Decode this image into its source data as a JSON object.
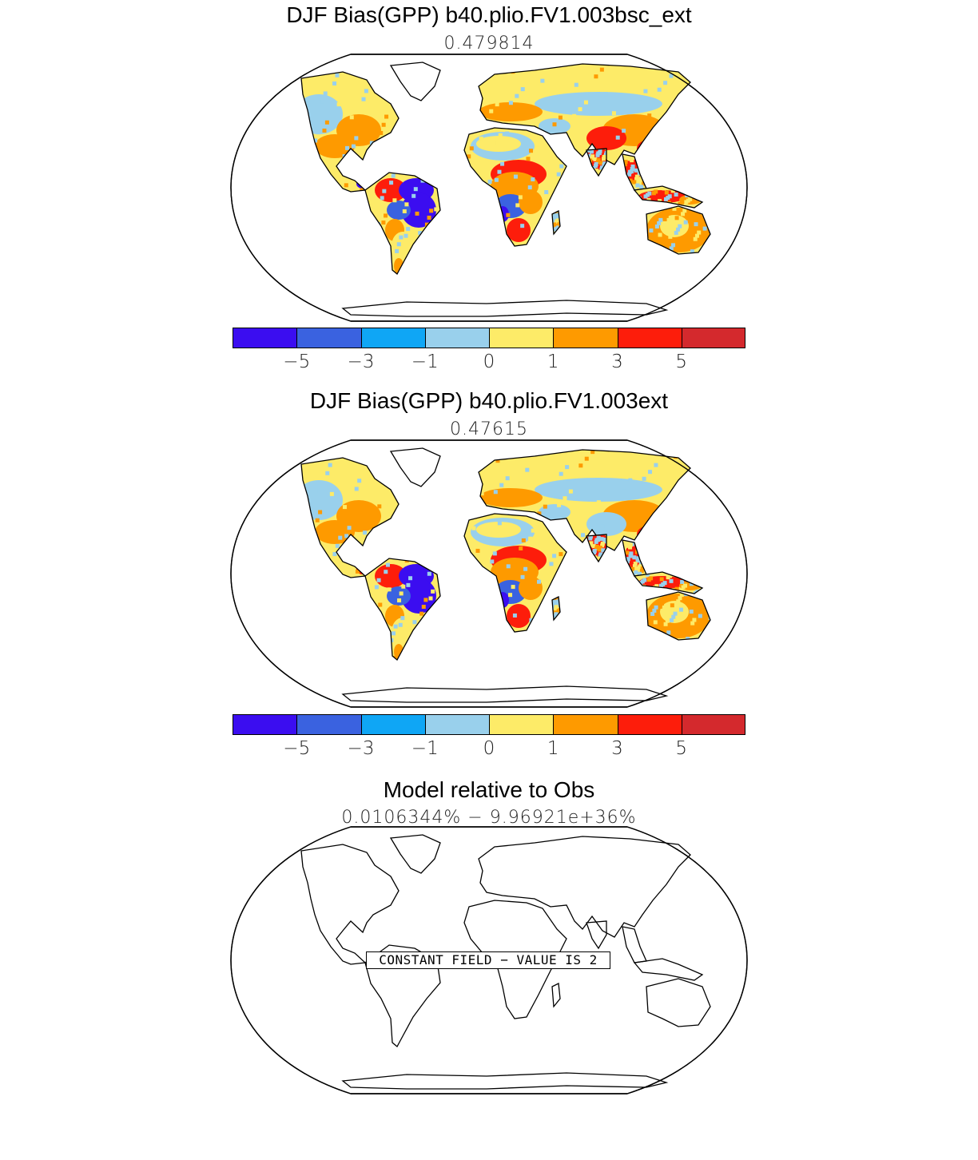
{
  "panels": [
    {
      "title": "DJF Bias(GPP) b40.plio.FV1.003bsc_ext",
      "subtitle": "0.479814",
      "colorbar": {
        "colors": [
          "#3b0df0",
          "#3a62e0",
          "#0fa6f5",
          "#99d0ec",
          "#fdeb68",
          "#fe9a00",
          "#fd1d0b",
          "#d4292d"
        ],
        "tick_labels": [
          "−5",
          "−3",
          "−1",
          "0",
          "1",
          "3",
          "5"
        ]
      }
    },
    {
      "title": "DJF Bias(GPP) b40.plio.FV1.003ext",
      "subtitle": "0.47615",
      "colorbar": {
        "colors": [
          "#3b0df0",
          "#3a62e0",
          "#0fa6f5",
          "#99d0ec",
          "#fdeb68",
          "#fe9a00",
          "#fd1d0b",
          "#d4292d"
        ],
        "tick_labels": [
          "−5",
          "−3",
          "−1",
          "0",
          "1",
          "3",
          "5"
        ]
      }
    },
    {
      "title": "Model relative to Obs",
      "subtitle": "0.0106344% − 9.96921e+36%",
      "notice": "CONSTANT FIELD − VALUE IS 2"
    }
  ],
  "legend_levels": [
    "< -5",
    "-5 to -3",
    "-3 to -1",
    "-1 to 0",
    "0 to 1",
    "1 to 3",
    "3 to 5",
    "> 5"
  ]
}
